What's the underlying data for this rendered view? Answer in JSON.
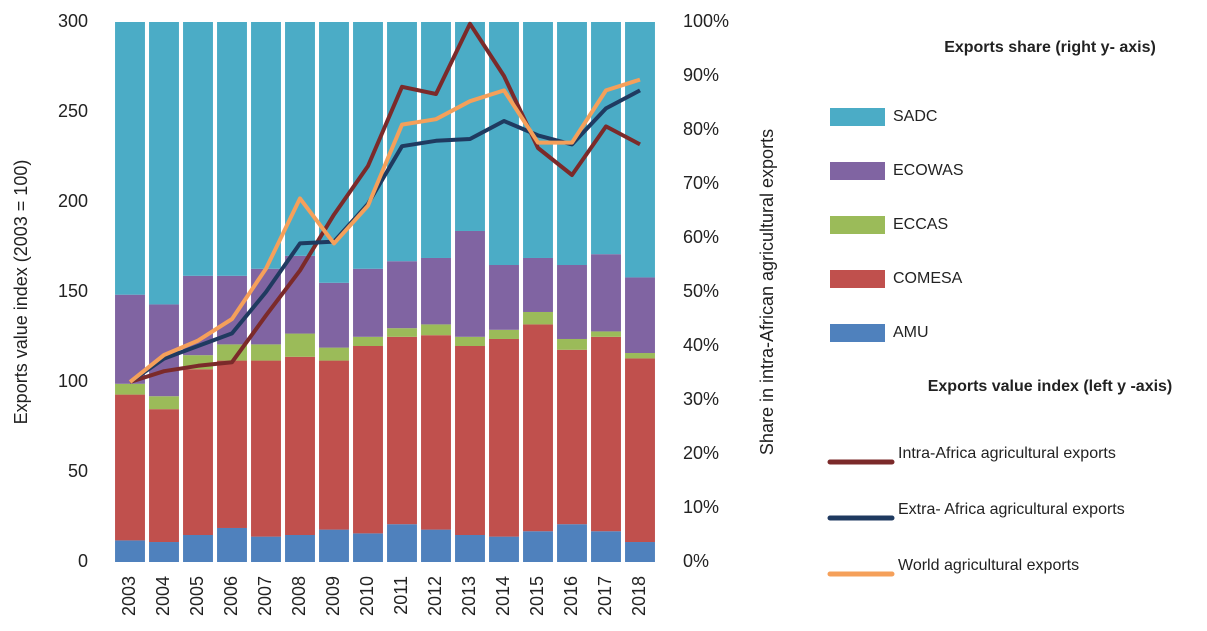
{
  "chart_data": {
    "type": "bar",
    "categories": [
      "2003",
      "2004",
      "2005",
      "2006",
      "2007",
      "2008",
      "2009",
      "2010",
      "2011",
      "2012",
      "2013",
      "2014",
      "2015",
      "2016",
      "2017",
      "2018"
    ],
    "ylabel": "Exports value index (2003 = 100)",
    "y2label": "Share in intra-African agricultural exports",
    "ylim": [
      0,
      300
    ],
    "yticks": [
      0,
      50,
      100,
      150,
      200,
      250,
      300
    ],
    "y2lim": [
      0,
      100
    ],
    "y2ticks": [
      {
        "value": 0,
        "label": "0%"
      },
      {
        "value": 10,
        "label": "10%"
      },
      {
        "value": 20,
        "label": "20%"
      },
      {
        "value": 30,
        "label": "30%"
      },
      {
        "value": 40,
        "label": "40%"
      },
      {
        "value": 50,
        "label": "50%"
      },
      {
        "value": 60,
        "label": "60%"
      },
      {
        "value": 70,
        "label": "70%"
      },
      {
        "value": 80,
        "label": "80%"
      },
      {
        "value": 90,
        "label": "90%"
      },
      {
        "value": 100,
        "label": "100%"
      }
    ],
    "legend_title_share": "Exports share (right y- axis)",
    "legend_title_index": "Exports value index (left y -axis)",
    "series": [
      {
        "name": "AMU",
        "type": "bar",
        "axis": "y2",
        "color": "#4f81bd",
        "values": [
          4,
          3.7,
          5,
          6.3,
          4.7,
          5,
          6,
          5.3,
          7,
          6,
          5,
          4.7,
          5.7,
          7,
          5.7,
          3.7
        ]
      },
      {
        "name": "COMESA",
        "type": "bar",
        "axis": "y2",
        "color": "#c0504d",
        "values": [
          27,
          24.6,
          30.7,
          31,
          32.6,
          33,
          31.3,
          34.7,
          34.7,
          36,
          35,
          36.6,
          38.3,
          32.3,
          36,
          34
        ]
      },
      {
        "name": "ECCAS",
        "type": "bar",
        "axis": "y2",
        "color": "#9bbb59",
        "values": [
          2,
          2.4,
          2.6,
          3,
          3,
          4.3,
          2.4,
          1.7,
          1.6,
          2,
          1.7,
          1.7,
          2.3,
          2,
          1,
          1
        ]
      },
      {
        "name": "ECOWAS",
        "type": "bar",
        "axis": "y2",
        "color": "#8064a2",
        "values": [
          16.5,
          17,
          14.7,
          12.7,
          14,
          14.4,
          12,
          12.6,
          12.4,
          12.3,
          19.6,
          12,
          10,
          13.7,
          14.3,
          14
        ]
      },
      {
        "name": "SADC",
        "type": "bar",
        "axis": "y2",
        "color": "#4bacc6",
        "values": [
          50.5,
          52.3,
          47,
          47,
          45.7,
          43.3,
          48.3,
          45.7,
          44.3,
          43.7,
          38.7,
          45,
          43.7,
          45,
          43,
          47.3
        ]
      },
      {
        "name": "Intra-Africa agricultural exports",
        "type": "line",
        "color": "#7b2a2a",
        "values": [
          100,
          106,
          109,
          111,
          137,
          162,
          193,
          220,
          264,
          260,
          299,
          270,
          230,
          215,
          242,
          232
        ]
      },
      {
        "name": "Extra- Africa agricultural exports",
        "type": "line",
        "color": "#1f3a60",
        "values": [
          100,
          113,
          120,
          127,
          150,
          177,
          178,
          199,
          231,
          234,
          235,
          245,
          237,
          232,
          252,
          262
        ]
      },
      {
        "name": "World agricultural exports",
        "type": "line",
        "color": "#f5a05a",
        "values": [
          100,
          115,
          123,
          135,
          163,
          202,
          177,
          198,
          243,
          246,
          256,
          262,
          233,
          233,
          262,
          268
        ]
      }
    ]
  }
}
